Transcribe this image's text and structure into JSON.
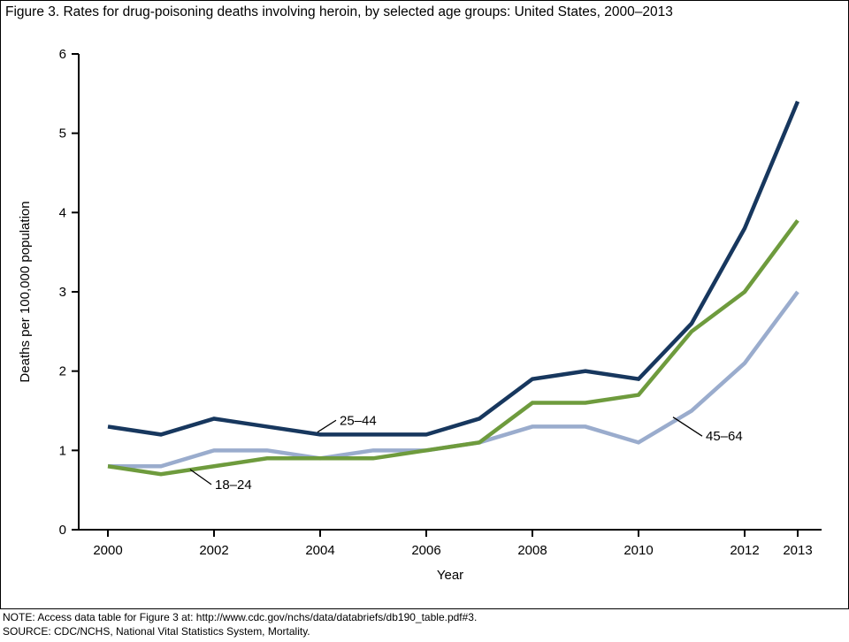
{
  "notes": {
    "note": "NOTE: Access data table for Figure 3 at: http://www.cdc.gov/nchs/data/databriefs/db190_table.pdf#3.",
    "source": "SOURCE: CDC/NCHS, National Vital Statistics System, Mortality."
  },
  "chart_data": {
    "type": "line",
    "title": "Figure 3. Rates for drug-poisoning deaths involving heroin, by selected age groups: United States, 2000–2013",
    "xlabel": "Year",
    "ylabel": "Deaths per 100,000 population",
    "x": [
      2000,
      2001,
      2002,
      2003,
      2004,
      2005,
      2006,
      2007,
      2008,
      2009,
      2010,
      2011,
      2012,
      2013
    ],
    "xlim": [
      1999.45,
      2013.45
    ],
    "ylim": [
      0,
      6
    ],
    "yticks": [
      0,
      1,
      2,
      3,
      4,
      5,
      6
    ],
    "xticks": [
      2000,
      2002,
      2004,
      2006,
      2008,
      2010,
      2012,
      2013
    ],
    "grid": false,
    "legend": "inline-annotations",
    "axis_color": "#000000",
    "series": [
      {
        "name": "45–64",
        "color": "#9aaccd",
        "values": [
          0.8,
          0.8,
          1.0,
          1.0,
          0.9,
          1.0,
          1.0,
          1.1,
          1.3,
          1.3,
          1.1,
          1.5,
          2.1,
          3.0
        ]
      },
      {
        "name": "18–24",
        "color": "#6e9b3d",
        "values": [
          0.8,
          0.7,
          0.8,
          0.9,
          0.9,
          0.9,
          1.0,
          1.1,
          1.6,
          1.6,
          1.7,
          2.5,
          3.0,
          3.9
        ]
      },
      {
        "name": "25–44",
        "color": "#17375e",
        "values": [
          1.3,
          1.2,
          1.4,
          1.3,
          1.2,
          1.2,
          1.2,
          1.4,
          1.9,
          2.0,
          1.9,
          2.6,
          3.8,
          5.4
        ]
      }
    ],
    "annotations": [
      {
        "text": "25–44",
        "tx": 2004.3,
        "ty": 1.38,
        "ax": 2003.95,
        "ay": 1.23
      },
      {
        "text": "18–24",
        "tx": 2001.95,
        "ty": 0.57,
        "ax": 2001.55,
        "ay": 0.76
      },
      {
        "text": "45–64",
        "tx": 2011.2,
        "ty": 1.18,
        "ax": 2010.65,
        "ay": 1.42
      }
    ]
  }
}
